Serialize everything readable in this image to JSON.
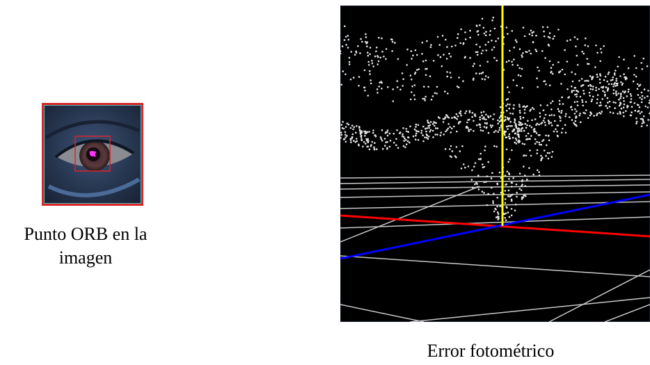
{
  "left_figure": {
    "caption_line1": "Punto ORB en la",
    "caption_line2": "imagen",
    "colors": {
      "outer_border": "#d8262a",
      "roi_box": "#e0202a",
      "keypoint": "#ff33ff",
      "skin": "#2b3d5a",
      "background_teal": "#5fb8b4"
    }
  },
  "right_figure": {
    "caption": "Error fotométrico",
    "colors": {
      "background": "#000000",
      "points": "#e6e6e6",
      "grid": "#c8c8c8",
      "axis_x": "#ff0000",
      "axis_y": "#0000ff",
      "axis_z": "#ffff00"
    }
  }
}
